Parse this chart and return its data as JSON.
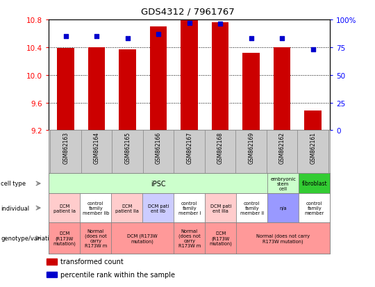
{
  "title": "GDS4312 / 7961767",
  "samples": [
    "GSM862163",
    "GSM862164",
    "GSM862165",
    "GSM862166",
    "GSM862167",
    "GSM862168",
    "GSM862169",
    "GSM862162",
    "GSM862161"
  ],
  "transformed_count": [
    10.39,
    10.4,
    10.37,
    10.7,
    10.79,
    10.76,
    10.32,
    10.4,
    9.48
  ],
  "percentile_rank": [
    85,
    85,
    83,
    87,
    97,
    96,
    83,
    83,
    73
  ],
  "ylim_left": [
    9.2,
    10.8
  ],
  "ylim_right": [
    0,
    100
  ],
  "yticks_left": [
    9.2,
    9.6,
    10.0,
    10.4,
    10.8
  ],
  "yticks_right": [
    0,
    25,
    50,
    75,
    100
  ],
  "bar_color": "#cc0000",
  "dot_color": "#0000cc",
  "bar_bottom": 9.2,
  "gray_bg": "#cccccc",
  "white_bg": "#ffffff",
  "cell_type_ipsc_bg": "#ccffcc",
  "cell_type_esc_bg": "#ccffcc",
  "cell_type_fibro_bg": "#33cc33",
  "ind_dcm_bg": "#ffcccc",
  "ind_normal_bg": "#ffffff",
  "ind_dcmpurple_bg": "#ccccff",
  "ind_na_bg": "#9999ff",
  "genotype_bg": "#ff9999",
  "legend_items": [
    {
      "color": "#cc0000",
      "label": "transformed count"
    },
    {
      "color": "#0000cc",
      "label": "percentile rank within the sample"
    }
  ]
}
